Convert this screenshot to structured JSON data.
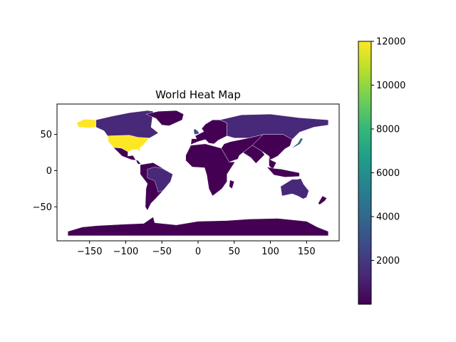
{
  "chart_data": {
    "type": "heatmap",
    "title": "World Heat Map",
    "xlim": [
      -195,
      195
    ],
    "ylim": [
      -97,
      92
    ],
    "x_ticks": [
      -150,
      -100,
      -50,
      0,
      50,
      100,
      150
    ],
    "y_ticks": [
      50,
      0,
      -50
    ],
    "colorbar": {
      "colormap": "viridis",
      "range": [
        0,
        12000
      ],
      "ticks": [
        2000,
        4000,
        6000,
        8000,
        10000,
        12000
      ],
      "colors": [
        "#440154",
        "#482878",
        "#3e4989",
        "#31688e",
        "#26828e",
        "#1f9e89",
        "#35b779",
        "#6ece58",
        "#b5de2b",
        "#fde725"
      ]
    },
    "regions": [
      {
        "name": "United States",
        "value": 12000
      },
      {
        "name": "Alaska",
        "value": 12000
      },
      {
        "name": "Canada",
        "value": 1500
      },
      {
        "name": "Russia",
        "value": 1500
      },
      {
        "name": "Brazil",
        "value": 1900
      },
      {
        "name": "Australia",
        "value": 1800
      },
      {
        "name": "Japan",
        "value": 4200
      },
      {
        "name": "United Kingdom",
        "value": 3500
      },
      {
        "name": "Greenland",
        "value": 200
      },
      {
        "name": "Antarctica",
        "value": 150
      },
      {
        "name": "China",
        "value": 300
      },
      {
        "name": "India",
        "value": 400
      },
      {
        "name": "Africa",
        "value": 200
      }
    ]
  }
}
